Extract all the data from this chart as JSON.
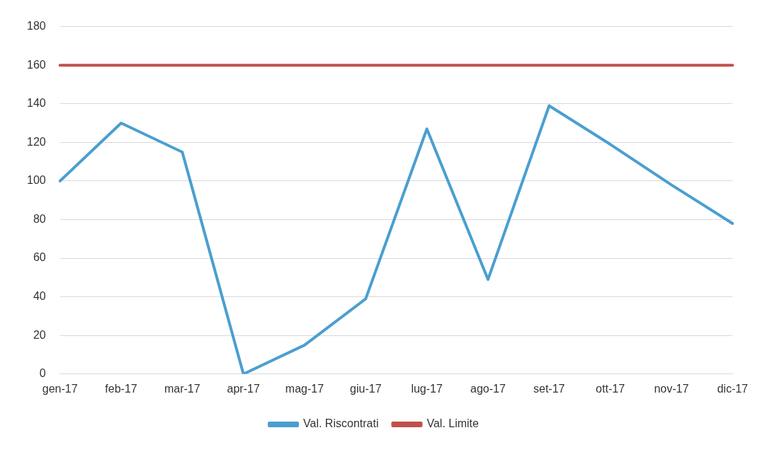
{
  "chart_data": {
    "type": "line",
    "categories": [
      "gen-17",
      "feb-17",
      "mar-17",
      "apr-17",
      "mag-17",
      "giu-17",
      "lug-17",
      "ago-17",
      "set-17",
      "ott-17",
      "nov-17",
      "dic-17"
    ],
    "series": [
      {
        "name": "Val. Riscontrati",
        "color": "#4a9fd0",
        "values": [
          100,
          130,
          115,
          0,
          15,
          39,
          127,
          49,
          139,
          119,
          98,
          78
        ]
      },
      {
        "name": "Val. Limite",
        "color": "#c0504d",
        "values": [
          160,
          160,
          160,
          160,
          160,
          160,
          160,
          160,
          160,
          160,
          160,
          160
        ]
      }
    ],
    "ylim": [
      0,
      180
    ],
    "yticks": [
      0,
      20,
      40,
      60,
      80,
      100,
      120,
      140,
      160,
      180
    ],
    "grid": "y",
    "legend": "bottom",
    "marker": "none",
    "line_style": "solid"
  }
}
